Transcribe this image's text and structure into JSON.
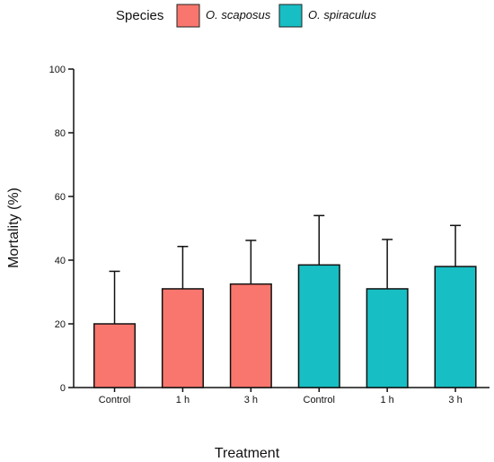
{
  "chart_data": {
    "type": "bar",
    "title": "",
    "xlabel": "Treatment",
    "ylabel": "Mortality (%)",
    "ylim": [
      0,
      100
    ],
    "yticks": [
      0,
      20,
      40,
      60,
      80,
      100
    ],
    "grid": false,
    "legend": {
      "title": "Species",
      "placement": "top-center",
      "entries": [
        {
          "label": "O. scaposus",
          "color": "#F8766D"
        },
        {
          "label": "O. spiraculus",
          "color": "#17BEC4"
        }
      ]
    },
    "categories": [
      "Control",
      "1 h",
      "3 h",
      "Control",
      "1 h",
      "3 h"
    ],
    "bars": [
      {
        "category": "Control",
        "species": "O. scaposus",
        "value": 20,
        "error": 16.5
      },
      {
        "category": "1 h",
        "species": "O. scaposus",
        "value": 31,
        "error": 13.3
      },
      {
        "category": "3 h",
        "species": "O. scaposus",
        "value": 32.5,
        "error": 13.7
      },
      {
        "category": "Control",
        "species": "O. spiraculus",
        "value": 38.5,
        "error": 15.5
      },
      {
        "category": "1 h",
        "species": "O. spiraculus",
        "value": 31,
        "error": 15.5
      },
      {
        "category": "3 h",
        "species": "O. spiraculus",
        "value": 38,
        "error": 12.9
      }
    ]
  }
}
